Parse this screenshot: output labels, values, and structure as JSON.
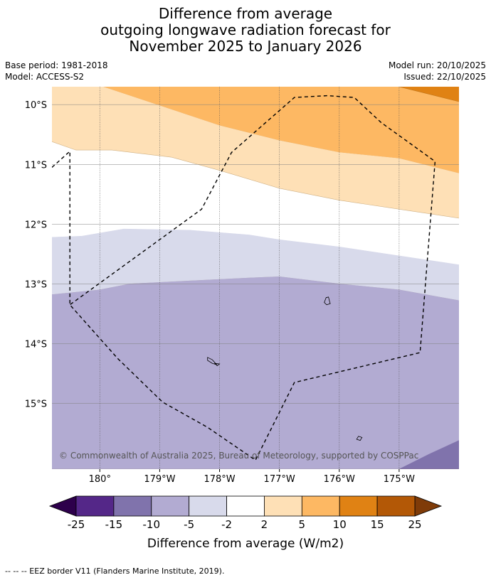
{
  "title": {
    "line1": "Difference from average",
    "line2": "outgoing longwave radiation forecast for",
    "line3": "November 2025 to January 2026"
  },
  "meta": {
    "base_period": "Base period: 1981-2018",
    "model": "Model: ACCESS-S2",
    "model_run": "Model run: 20/10/2025",
    "issued": "Issued: 22/10/2025"
  },
  "map": {
    "lon_range": [
      -180.8,
      -174.0
    ],
    "lat_range": [
      -16.1,
      -9.7
    ],
    "lat_ticks": [
      {
        "value": -10,
        "label": "10°S"
      },
      {
        "value": -11,
        "label": "11°S"
      },
      {
        "value": -12,
        "label": "12°S"
      },
      {
        "value": -13,
        "label": "13°S"
      },
      {
        "value": -14,
        "label": "14°S"
      },
      {
        "value": -15,
        "label": "15°S"
      }
    ],
    "lon_ticks": [
      {
        "value": -180,
        "label": "180°"
      },
      {
        "value": -179,
        "label": "179°W"
      },
      {
        "value": -178,
        "label": "178°W"
      },
      {
        "value": -177,
        "label": "177°W"
      },
      {
        "value": -176,
        "label": "176°W"
      },
      {
        "value": -175,
        "label": "175°W"
      }
    ],
    "copyright": "© Commonwealth of Australia 2025, Bureau of Meteorology, supported by COSPPac",
    "bands": [
      {
        "level": "5 to 10",
        "color": "#fdb863",
        "lower": [
          [
            -179.95,
            -9.7
          ],
          [
            -178,
            -10.35
          ],
          [
            -177,
            -10.6
          ],
          [
            -176,
            -10.8
          ],
          [
            -175,
            -10.9
          ],
          [
            -174,
            -11.15
          ]
        ],
        "upper": [
          [
            -179.95,
            -9.7
          ],
          [
            -174,
            -9.7
          ]
        ]
      },
      {
        "level": "10 to 15",
        "color": "#e08214",
        "lower": [
          [
            -175.0,
            -9.7
          ],
          [
            -174,
            -9.95
          ]
        ],
        "upper": [
          [
            -175.0,
            -9.7
          ],
          [
            -174,
            -9.7
          ]
        ]
      },
      {
        "level": "2 to 5",
        "color": "#fee0b6",
        "lower": [
          [
            -180.8,
            -10.62
          ],
          [
            -180.4,
            -10.76
          ],
          [
            -179.8,
            -10.76
          ],
          [
            -178.8,
            -10.88
          ],
          [
            -178,
            -11.1
          ],
          [
            -177,
            -11.4
          ],
          [
            -176,
            -11.6
          ],
          [
            -175,
            -11.75
          ],
          [
            -174,
            -11.9
          ]
        ],
        "upper": [
          [
            -180.8,
            -9.7
          ],
          [
            -179.95,
            -9.7
          ],
          [
            -178,
            -10.35
          ],
          [
            -177,
            -10.6
          ],
          [
            -176,
            -10.8
          ],
          [
            -175,
            -10.9
          ],
          [
            -174,
            -11.15
          ]
        ]
      },
      {
        "level": "-5 to -2",
        "color": "#d8daeb",
        "lower": [
          [
            -180.8,
            -13.18
          ],
          [
            -180,
            -13.1
          ],
          [
            -179.5,
            -13.0
          ],
          [
            -178.5,
            -12.95
          ],
          [
            -177.5,
            -12.9
          ],
          [
            -177,
            -12.88
          ],
          [
            -176,
            -13.0
          ],
          [
            -175,
            -13.1
          ],
          [
            -174,
            -13.28
          ]
        ],
        "upper": [
          [
            -180.8,
            -12.22
          ],
          [
            -180.3,
            -12.2
          ],
          [
            -179.6,
            -12.08
          ],
          [
            -178.5,
            -12.1
          ],
          [
            -177.5,
            -12.18
          ],
          [
            -177,
            -12.26
          ],
          [
            -176,
            -12.38
          ],
          [
            -175,
            -12.53
          ],
          [
            -174,
            -12.68
          ]
        ]
      },
      {
        "level": "-10 to -5",
        "color": "#b2abd2",
        "lower": [
          [
            -180.8,
            -16.1
          ],
          [
            -174,
            -16.1
          ]
        ],
        "upper": [
          [
            -180.8,
            -13.18
          ],
          [
            -180,
            -13.1
          ],
          [
            -179.5,
            -13.0
          ],
          [
            -178.5,
            -12.95
          ],
          [
            -177.5,
            -12.9
          ],
          [
            -177,
            -12.88
          ],
          [
            -176,
            -13.0
          ],
          [
            -175,
            -13.1
          ],
          [
            -174,
            -13.28
          ]
        ]
      },
      {
        "level": "-15 to -10",
        "color": "#8073ac",
        "lower": [
          [
            -175.0,
            -16.1
          ],
          [
            -174,
            -16.1
          ]
        ],
        "upper": [
          [
            -175.0,
            -16.1
          ],
          [
            -174.5,
            -15.85
          ],
          [
            -174,
            -15.62
          ]
        ]
      }
    ],
    "eez": [
      [
        -180.8,
        -11.05
      ],
      [
        -180.5,
        -10.78
      ],
      [
        -180.5,
        -13.35
      ],
      [
        -179.7,
        -14.25
      ],
      [
        -178.95,
        -14.98
      ],
      [
        -178.2,
        -15.4
      ],
      [
        -177.4,
        -15.95
      ],
      [
        -176.75,
        -14.65
      ],
      [
        -174.65,
        -14.15
      ],
      [
        -174.4,
        -10.95
      ],
      [
        -175.3,
        -10.3
      ],
      [
        -175.75,
        -9.88
      ],
      [
        -176.2,
        -9.85
      ],
      [
        -176.75,
        -9.88
      ],
      [
        -177.8,
        -10.8
      ],
      [
        -178.3,
        -11.75
      ],
      [
        -180.5,
        -13.35
      ]
    ],
    "islands": [
      [
        [
          -176.22,
          -13.23
        ],
        [
          -176.18,
          -13.22
        ],
        [
          -176.16,
          -13.3
        ],
        [
          -176.15,
          -13.33
        ],
        [
          -176.21,
          -13.35
        ],
        [
          -176.25,
          -13.31
        ]
      ],
      [
        [
          -178.2,
          -14.23
        ],
        [
          -178.12,
          -14.27
        ],
        [
          -178.05,
          -14.35
        ],
        [
          -178.12,
          -14.33
        ],
        [
          -178.2,
          -14.28
        ]
      ],
      [
        [
          -178.08,
          -14.33
        ],
        [
          -178.0,
          -14.34
        ],
        [
          -178.04,
          -14.37
        ]
      ],
      [
        [
          -175.68,
          -15.55
        ],
        [
          -175.62,
          -15.57
        ],
        [
          -175.65,
          -15.62
        ],
        [
          -175.71,
          -15.6
        ]
      ]
    ]
  },
  "colorbar": {
    "labels": [
      "-25",
      "-15",
      "-10",
      "-5",
      "-2",
      "2",
      "5",
      "10",
      "15",
      "25"
    ],
    "colors": [
      "#542788",
      "#8073ac",
      "#b2abd2",
      "#d8daeb",
      "#ffffff",
      "#fee0b6",
      "#fdb863",
      "#e08214",
      "#b35806"
    ],
    "extend_low": "#2d004b",
    "extend_high": "#7f3b08",
    "title": "Difference from average (W/m2)"
  },
  "footer": "--  --  -- EEZ border V11 (Flanders Marine Institute, 2019)."
}
